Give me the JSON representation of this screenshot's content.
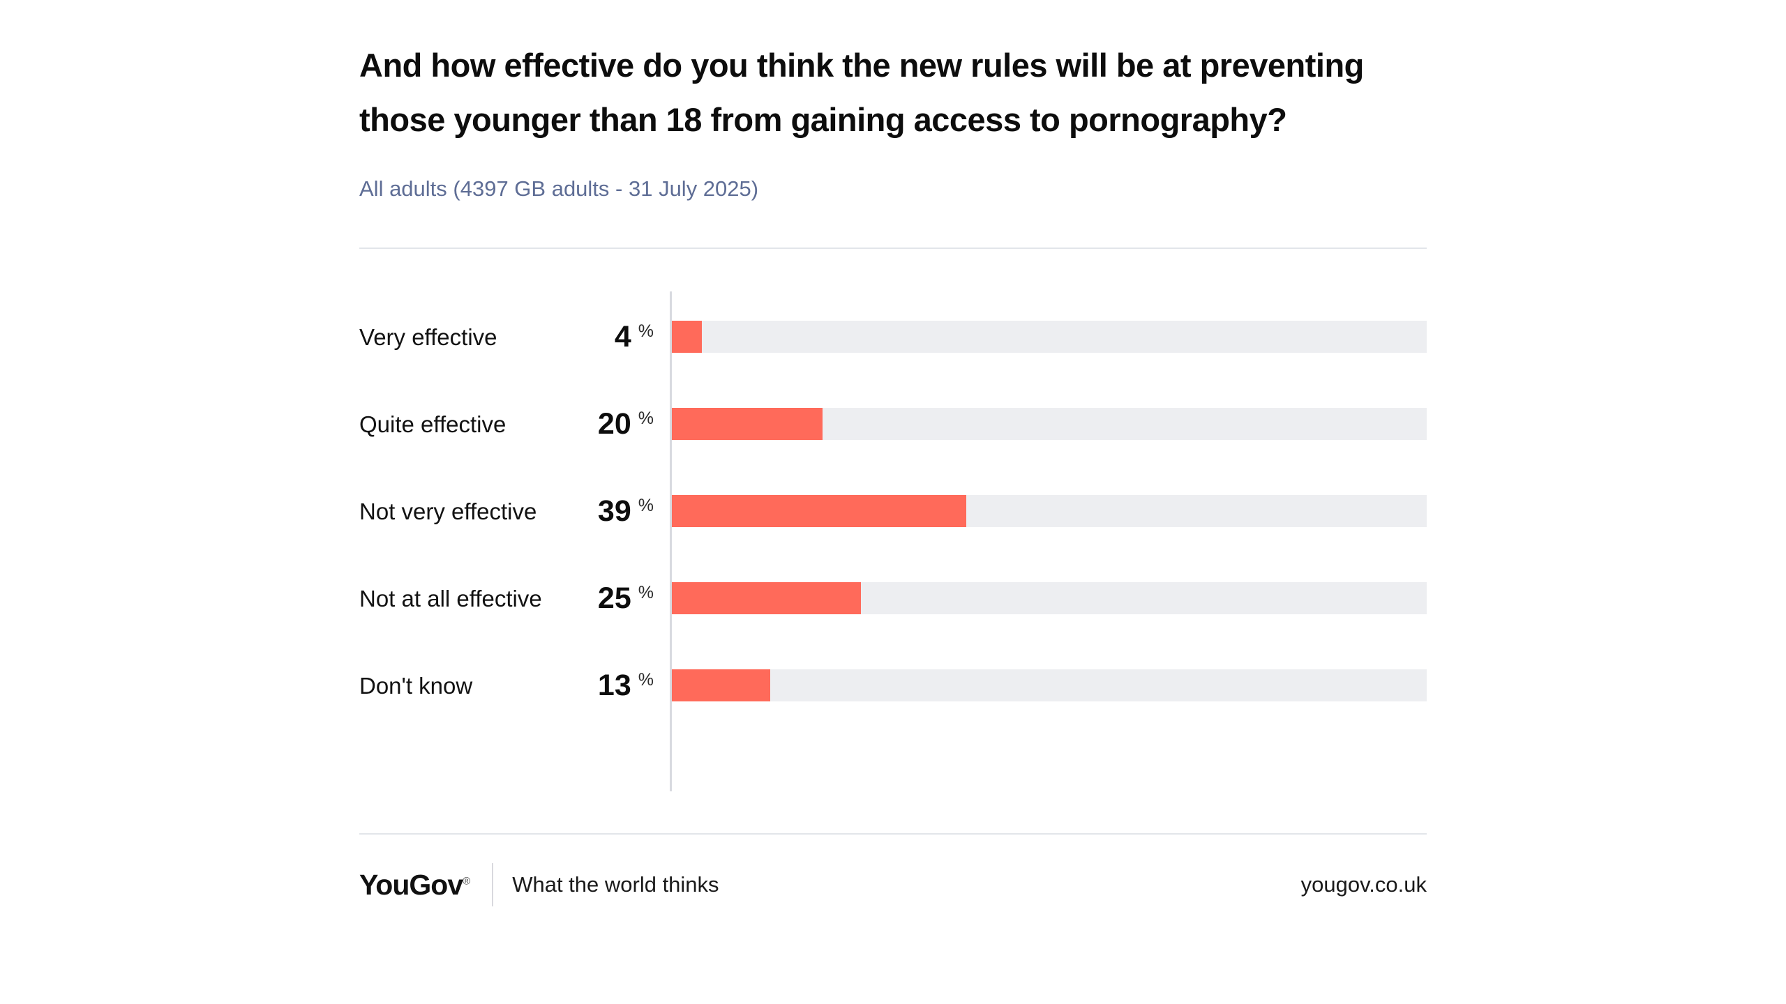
{
  "header": {
    "title": "And how effective do you think the new rules will be at preventing those younger than 18 from gaining access to pornography?",
    "subtitle": "All adults (4397 GB adults - 31 July 2025)"
  },
  "chart_data": {
    "type": "bar",
    "orientation": "horizontal",
    "categories": [
      "Very effective",
      "Quite effective",
      "Not very effective",
      "Not at all effective",
      "Don't know"
    ],
    "values": [
      4,
      20,
      39,
      25,
      13
    ],
    "unit": "%",
    "xlim": [
      0,
      100
    ],
    "grid": false,
    "value_label_position": "left of axis",
    "bar_color": "#ff6a5a",
    "track_color": "#edeef1",
    "axis_line_color": "#d8dae0"
  },
  "colors": {
    "title_text": "#0d0d0d",
    "subtitle_text": "#5e6d95",
    "divider": "#e2e5ea",
    "background": "#ffffff"
  },
  "footer": {
    "logo": "YouGov",
    "registered_mark": "®",
    "tagline": "What the world thinks",
    "url": "yougov.co.uk"
  }
}
